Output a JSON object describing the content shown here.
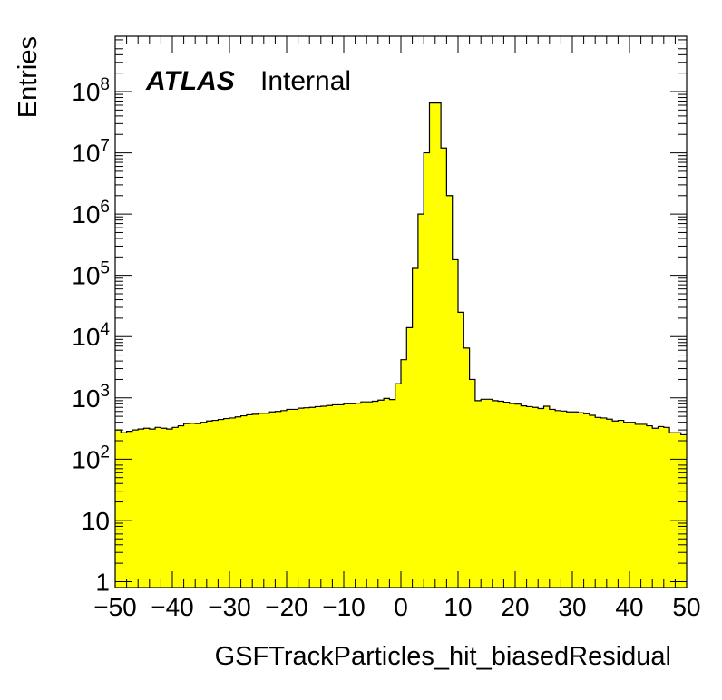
{
  "chart_data": {
    "type": "bar",
    "title": "",
    "xlabel": "GSFTrackParticles_hit_biasedResidual",
    "ylabel": "Entries",
    "xlim": [
      -50,
      50
    ],
    "ylim": [
      0.8,
      800000000
    ],
    "yscale": "log",
    "fill_color": "#ffff00",
    "line_color": "#000000",
    "label": {
      "bold": "ATLAS",
      "normal": "Internal"
    },
    "x_ticks": [
      -50,
      -40,
      -30,
      -20,
      -10,
      0,
      10,
      20,
      30,
      40,
      50
    ],
    "x_tick_labels": [
      "−50",
      "−40",
      "−30",
      "−20",
      "−10",
      "0",
      "10",
      "20",
      "30",
      "40",
      "50"
    ],
    "y_ticks": [
      {
        "value": 1,
        "label": "1"
      },
      {
        "value": 10,
        "label": "10"
      },
      {
        "value": 100,
        "label": "10",
        "exponent": "2"
      },
      {
        "value": 1000,
        "label": "10",
        "exponent": "3"
      },
      {
        "value": 10000,
        "label": "10",
        "exponent": "4"
      },
      {
        "value": 100000,
        "label": "10",
        "exponent": "5"
      },
      {
        "value": 1000000,
        "label": "10",
        "exponent": "6"
      },
      {
        "value": 10000000,
        "label": "10",
        "exponent": "7"
      },
      {
        "value": 100000000,
        "label": "10",
        "exponent": "8"
      }
    ],
    "bin_width": 1,
    "bin_edges_start": -50,
    "values": [
      300,
      270,
      285,
      300,
      310,
      320,
      310,
      330,
      320,
      310,
      330,
      350,
      380,
      385,
      380,
      400,
      420,
      430,
      445,
      460,
      470,
      490,
      510,
      530,
      540,
      560,
      560,
      590,
      600,
      620,
      650,
      650,
      680,
      690,
      700,
      720,
      730,
      750,
      770,
      770,
      800,
      800,
      820,
      860,
      860,
      880,
      920,
      980,
      940,
      1700,
      4200,
      14000,
      130000,
      1000000,
      10000000,
      65000000,
      65000000,
      12000000,
      2000000,
      180000,
      25000,
      6500,
      2000,
      900,
      950,
      950,
      900,
      880,
      850,
      810,
      790,
      740,
      720,
      700,
      670,
      730,
      650,
      620,
      610,
      590,
      590,
      570,
      550,
      520,
      480,
      470,
      450,
      420,
      430,
      400,
      400,
      370,
      370,
      350,
      320,
      340,
      330,
      270,
      270,
      250
    ]
  }
}
